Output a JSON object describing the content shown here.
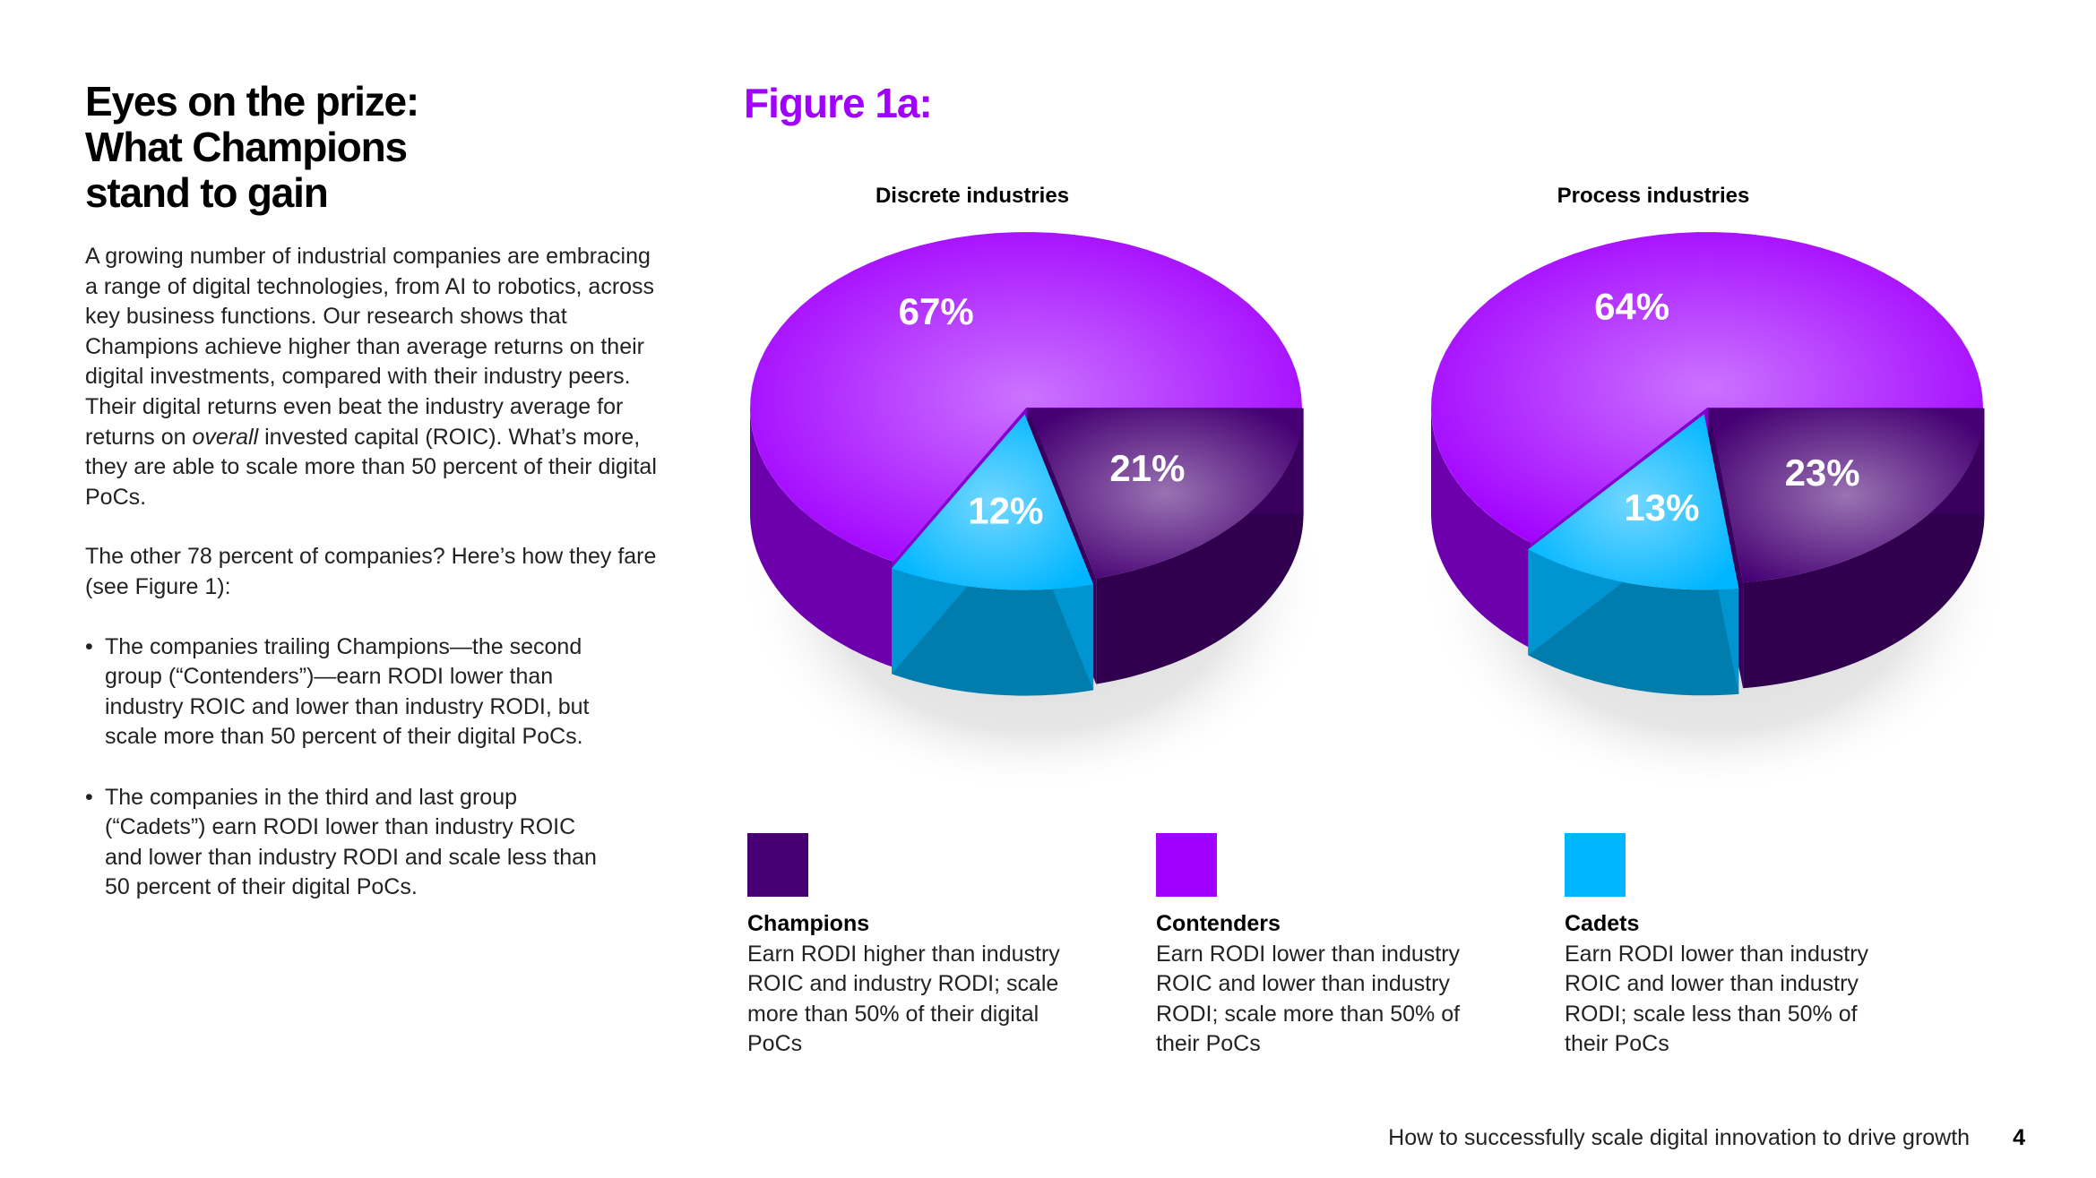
{
  "article": {
    "headline": "Eyes on the prize:\nWhat Champions\nstand to gain",
    "intro_before_em": "A growing number of industrial companies are embracing a range of digital technologies, from AI to robotics, across key business functions. Our research shows that Champions achieve higher than average returns on their digital investments, compared with their industry peers. Their digital returns even beat the industry average for returns on ",
    "intro_em": "overall",
    "intro_after_em": " invested capital (ROIC). What’s more, they are able to scale more than 50 percent of their digital PoCs.",
    "paragraph2": "The other 78 percent of companies? Here’s how they fare (see Figure 1):",
    "bullet_marker": "•",
    "bullets": [
      "The companies trailing Champions—the second group (“Contenders”)—earn RODI lower than industry ROIC and lower than industry RODI, but scale more than 50 percent of their digital PoCs.",
      "The companies in the third and last group (“Cadets”) earn RODI lower than industry ROIC and lower than industry RODI and scale less than 50 percent of their digital PoCs."
    ]
  },
  "figure": {
    "title": "Figure 1a:"
  },
  "chart_data": [
    {
      "type": "pie",
      "title": "Discrete industries",
      "categories": [
        "Contenders",
        "Cadets",
        "Champions"
      ],
      "values": [
        67,
        12,
        21
      ],
      "labels": [
        "67%",
        "12%",
        "21%"
      ],
      "colors": [
        "#a100ff",
        "#00b6ff",
        "#460073"
      ]
    },
    {
      "type": "pie",
      "title": "Process industries",
      "categories": [
        "Contenders",
        "Cadets",
        "Champions"
      ],
      "values": [
        64,
        13,
        23
      ],
      "labels": [
        "64%",
        "13%",
        "23%"
      ],
      "colors": [
        "#a100ff",
        "#00b6ff",
        "#460073"
      ]
    }
  ],
  "legend": [
    {
      "name": "Champions",
      "color": "#460073",
      "description": "Earn RODI higher than industry ROIC and industry RODI; scale more than 50% of their digital PoCs"
    },
    {
      "name": "Contenders",
      "color": "#a100ff",
      "description": "Earn RODI lower than industry ROIC and lower than industry RODI; scale more than 50% of their PoCs"
    },
    {
      "name": "Cadets",
      "color": "#00b6ff",
      "description": "Earn RODI lower than industry ROIC and lower than industry RODI; scale less than 50% of their PoCs"
    }
  ],
  "footer": {
    "text": "How to successfully scale digital innovation to drive growth",
    "page_number": "4"
  }
}
